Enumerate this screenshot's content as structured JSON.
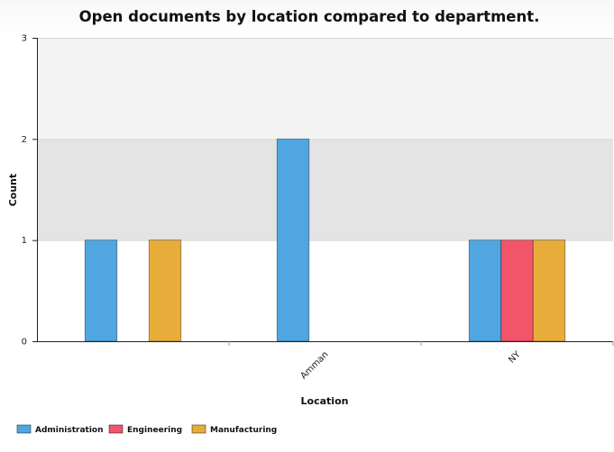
{
  "chart_data": {
    "type": "bar",
    "title": "Open documents by location compared to department.",
    "xlabel": "Location",
    "ylabel": "Count",
    "categories": [
      "",
      "Amman",
      "NY"
    ],
    "series": [
      {
        "name": "Administration",
        "color": "#4fa6e0",
        "values": [
          1,
          2,
          1
        ]
      },
      {
        "name": "Engineering",
        "color": "#f2546a",
        "values": [
          0,
          0,
          1
        ]
      },
      {
        "name": "Manufacturing",
        "color": "#e8ac3a",
        "values": [
          1,
          0,
          1
        ]
      }
    ],
    "ylim": [
      0,
      3
    ],
    "yticks": [
      "0",
      "1",
      "2",
      "3"
    ],
    "grid": true,
    "legend_position": "bottom-left"
  }
}
